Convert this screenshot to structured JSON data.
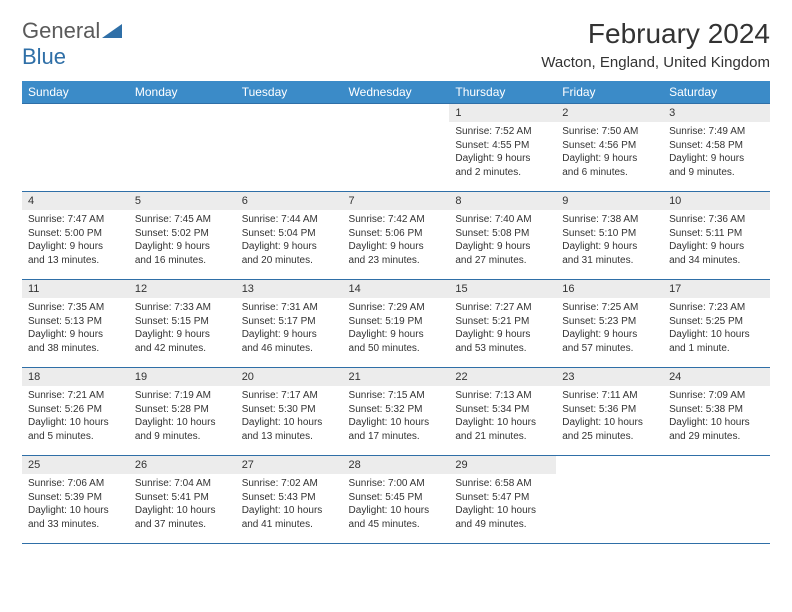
{
  "logo": {
    "text1": "General",
    "text2": "Blue"
  },
  "title": "February 2024",
  "location": "Wacton, England, United Kingdom",
  "colors": {
    "header_bg": "#3b8bc8",
    "header_text": "#ffffff",
    "border": "#2f6fa7",
    "daynum_bg": "#ececec",
    "logo_gray": "#5a5a5a",
    "logo_blue": "#2f6fa7"
  },
  "day_headers": [
    "Sunday",
    "Monday",
    "Tuesday",
    "Wednesday",
    "Thursday",
    "Friday",
    "Saturday"
  ],
  "weeks": [
    [
      {
        "empty": true
      },
      {
        "empty": true
      },
      {
        "empty": true
      },
      {
        "empty": true
      },
      {
        "n": "1",
        "sr": "Sunrise: 7:52 AM",
        "ss": "Sunset: 4:55 PM",
        "dl1": "Daylight: 9 hours",
        "dl2": "and 2 minutes."
      },
      {
        "n": "2",
        "sr": "Sunrise: 7:50 AM",
        "ss": "Sunset: 4:56 PM",
        "dl1": "Daylight: 9 hours",
        "dl2": "and 6 minutes."
      },
      {
        "n": "3",
        "sr": "Sunrise: 7:49 AM",
        "ss": "Sunset: 4:58 PM",
        "dl1": "Daylight: 9 hours",
        "dl2": "and 9 minutes."
      }
    ],
    [
      {
        "n": "4",
        "sr": "Sunrise: 7:47 AM",
        "ss": "Sunset: 5:00 PM",
        "dl1": "Daylight: 9 hours",
        "dl2": "and 13 minutes."
      },
      {
        "n": "5",
        "sr": "Sunrise: 7:45 AM",
        "ss": "Sunset: 5:02 PM",
        "dl1": "Daylight: 9 hours",
        "dl2": "and 16 minutes."
      },
      {
        "n": "6",
        "sr": "Sunrise: 7:44 AM",
        "ss": "Sunset: 5:04 PM",
        "dl1": "Daylight: 9 hours",
        "dl2": "and 20 minutes."
      },
      {
        "n": "7",
        "sr": "Sunrise: 7:42 AM",
        "ss": "Sunset: 5:06 PM",
        "dl1": "Daylight: 9 hours",
        "dl2": "and 23 minutes."
      },
      {
        "n": "8",
        "sr": "Sunrise: 7:40 AM",
        "ss": "Sunset: 5:08 PM",
        "dl1": "Daylight: 9 hours",
        "dl2": "and 27 minutes."
      },
      {
        "n": "9",
        "sr": "Sunrise: 7:38 AM",
        "ss": "Sunset: 5:10 PM",
        "dl1": "Daylight: 9 hours",
        "dl2": "and 31 minutes."
      },
      {
        "n": "10",
        "sr": "Sunrise: 7:36 AM",
        "ss": "Sunset: 5:11 PM",
        "dl1": "Daylight: 9 hours",
        "dl2": "and 34 minutes."
      }
    ],
    [
      {
        "n": "11",
        "sr": "Sunrise: 7:35 AM",
        "ss": "Sunset: 5:13 PM",
        "dl1": "Daylight: 9 hours",
        "dl2": "and 38 minutes."
      },
      {
        "n": "12",
        "sr": "Sunrise: 7:33 AM",
        "ss": "Sunset: 5:15 PM",
        "dl1": "Daylight: 9 hours",
        "dl2": "and 42 minutes."
      },
      {
        "n": "13",
        "sr": "Sunrise: 7:31 AM",
        "ss": "Sunset: 5:17 PM",
        "dl1": "Daylight: 9 hours",
        "dl2": "and 46 minutes."
      },
      {
        "n": "14",
        "sr": "Sunrise: 7:29 AM",
        "ss": "Sunset: 5:19 PM",
        "dl1": "Daylight: 9 hours",
        "dl2": "and 50 minutes."
      },
      {
        "n": "15",
        "sr": "Sunrise: 7:27 AM",
        "ss": "Sunset: 5:21 PM",
        "dl1": "Daylight: 9 hours",
        "dl2": "and 53 minutes."
      },
      {
        "n": "16",
        "sr": "Sunrise: 7:25 AM",
        "ss": "Sunset: 5:23 PM",
        "dl1": "Daylight: 9 hours",
        "dl2": "and 57 minutes."
      },
      {
        "n": "17",
        "sr": "Sunrise: 7:23 AM",
        "ss": "Sunset: 5:25 PM",
        "dl1": "Daylight: 10 hours",
        "dl2": "and 1 minute."
      }
    ],
    [
      {
        "n": "18",
        "sr": "Sunrise: 7:21 AM",
        "ss": "Sunset: 5:26 PM",
        "dl1": "Daylight: 10 hours",
        "dl2": "and 5 minutes."
      },
      {
        "n": "19",
        "sr": "Sunrise: 7:19 AM",
        "ss": "Sunset: 5:28 PM",
        "dl1": "Daylight: 10 hours",
        "dl2": "and 9 minutes."
      },
      {
        "n": "20",
        "sr": "Sunrise: 7:17 AM",
        "ss": "Sunset: 5:30 PM",
        "dl1": "Daylight: 10 hours",
        "dl2": "and 13 minutes."
      },
      {
        "n": "21",
        "sr": "Sunrise: 7:15 AM",
        "ss": "Sunset: 5:32 PM",
        "dl1": "Daylight: 10 hours",
        "dl2": "and 17 minutes."
      },
      {
        "n": "22",
        "sr": "Sunrise: 7:13 AM",
        "ss": "Sunset: 5:34 PM",
        "dl1": "Daylight: 10 hours",
        "dl2": "and 21 minutes."
      },
      {
        "n": "23",
        "sr": "Sunrise: 7:11 AM",
        "ss": "Sunset: 5:36 PM",
        "dl1": "Daylight: 10 hours",
        "dl2": "and 25 minutes."
      },
      {
        "n": "24",
        "sr": "Sunrise: 7:09 AM",
        "ss": "Sunset: 5:38 PM",
        "dl1": "Daylight: 10 hours",
        "dl2": "and 29 minutes."
      }
    ],
    [
      {
        "n": "25",
        "sr": "Sunrise: 7:06 AM",
        "ss": "Sunset: 5:39 PM",
        "dl1": "Daylight: 10 hours",
        "dl2": "and 33 minutes."
      },
      {
        "n": "26",
        "sr": "Sunrise: 7:04 AM",
        "ss": "Sunset: 5:41 PM",
        "dl1": "Daylight: 10 hours",
        "dl2": "and 37 minutes."
      },
      {
        "n": "27",
        "sr": "Sunrise: 7:02 AM",
        "ss": "Sunset: 5:43 PM",
        "dl1": "Daylight: 10 hours",
        "dl2": "and 41 minutes."
      },
      {
        "n": "28",
        "sr": "Sunrise: 7:00 AM",
        "ss": "Sunset: 5:45 PM",
        "dl1": "Daylight: 10 hours",
        "dl2": "and 45 minutes."
      },
      {
        "n": "29",
        "sr": "Sunrise: 6:58 AM",
        "ss": "Sunset: 5:47 PM",
        "dl1": "Daylight: 10 hours",
        "dl2": "and 49 minutes."
      },
      {
        "empty": true
      },
      {
        "empty": true
      }
    ]
  ]
}
